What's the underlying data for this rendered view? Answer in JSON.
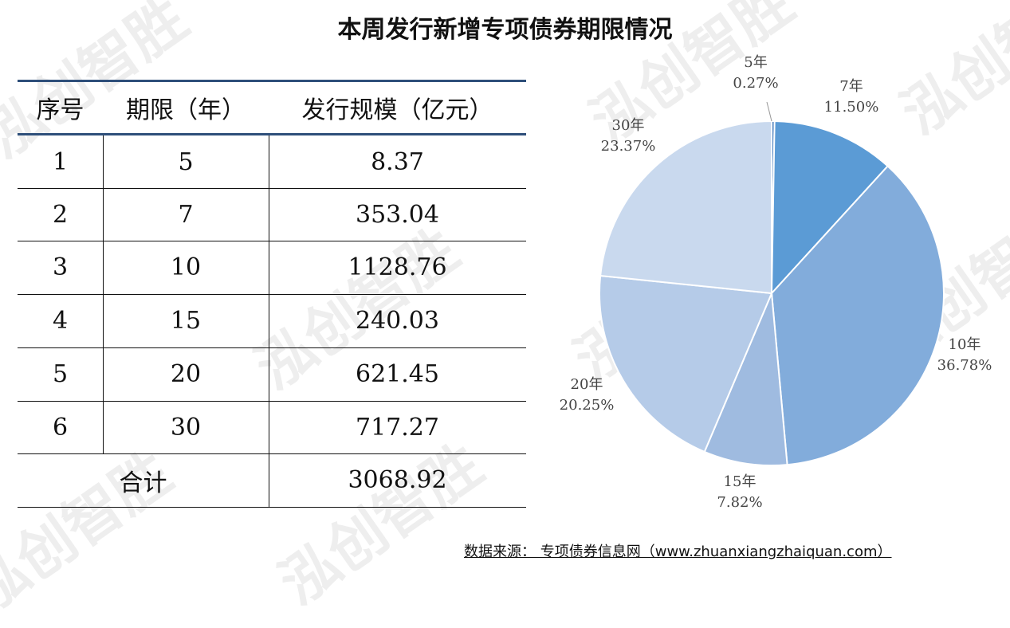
{
  "title": "本周发行新增专项债券期限情况",
  "watermark": "泓创智胜",
  "table": {
    "headers": [
      "序号",
      "期限（年）",
      "发行规模（亿元）"
    ],
    "rows": [
      [
        "1",
        "5",
        "8.37"
      ],
      [
        "2",
        "7",
        "353.04"
      ],
      [
        "3",
        "10",
        "1128.76"
      ],
      [
        "4",
        "15",
        "240.03"
      ],
      [
        "5",
        "20",
        "621.45"
      ],
      [
        "6",
        "30",
        "717.27"
      ]
    ],
    "total_label": "合计",
    "total_value": "3068.92"
  },
  "chart_data": {
    "type": "pie",
    "title": "",
    "slices": [
      {
        "label": "5年",
        "percent_label": "0.27%",
        "value": 0.27,
        "color": "#4a7fbd"
      },
      {
        "label": "7年",
        "percent_label": "11.50%",
        "value": 11.5,
        "color": "#5b9bd5"
      },
      {
        "label": "10年",
        "percent_label": "36.78%",
        "value": 36.78,
        "color": "#82acdb"
      },
      {
        "label": "15年",
        "percent_label": "7.82%",
        "value": 7.82,
        "color": "#9fbbe0"
      },
      {
        "label": "20年",
        "percent_label": "20.25%",
        "value": 20.25,
        "color": "#b5cbe8"
      },
      {
        "label": "30年",
        "percent_label": "23.37%",
        "value": 23.37,
        "color": "#c9d9ee"
      }
    ]
  },
  "source": "数据来源：  专项债券信息网（www.zhuanxiangzhaiquan.com）"
}
